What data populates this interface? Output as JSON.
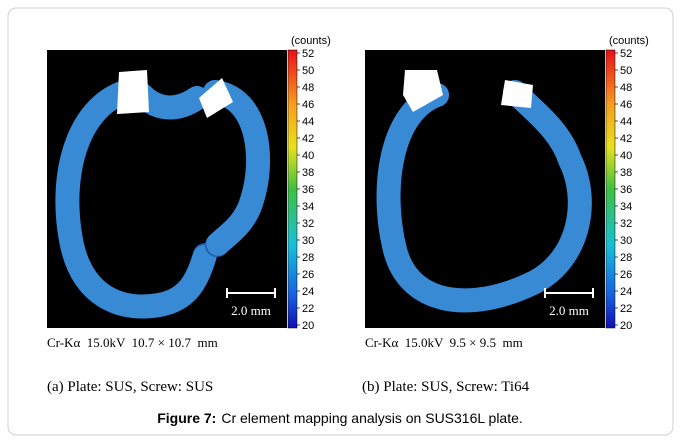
{
  "figure": {
    "panels": [
      {
        "colorbar": {
          "unit": "(counts)",
          "ticks": [
            52,
            50,
            48,
            46,
            44,
            42,
            40,
            38,
            36,
            34,
            32,
            30,
            28,
            26,
            24,
            22,
            20
          ]
        },
        "scale_bar": "2.0 mm",
        "conditions": "Cr-Kα  15.0kV  10.7 × 10.7  mm",
        "label": "(a) Plate: SUS, Screw: SUS"
      },
      {
        "colorbar": {
          "unit": "(counts)",
          "ticks": [
            52,
            50,
            48,
            46,
            44,
            42,
            40,
            38,
            36,
            34,
            32,
            30,
            28,
            26,
            24,
            22,
            20
          ]
        },
        "scale_bar": "2.0 mm",
        "conditions": "Cr-Kα  15.0kV  9.5 × 9.5  mm",
        "label": "(b) Plate: SUS, Screw: Ti64"
      }
    ],
    "caption": {
      "label": "Figure 7:",
      "text": "Cr element mapping analysis on SUS316L plate."
    }
  }
}
